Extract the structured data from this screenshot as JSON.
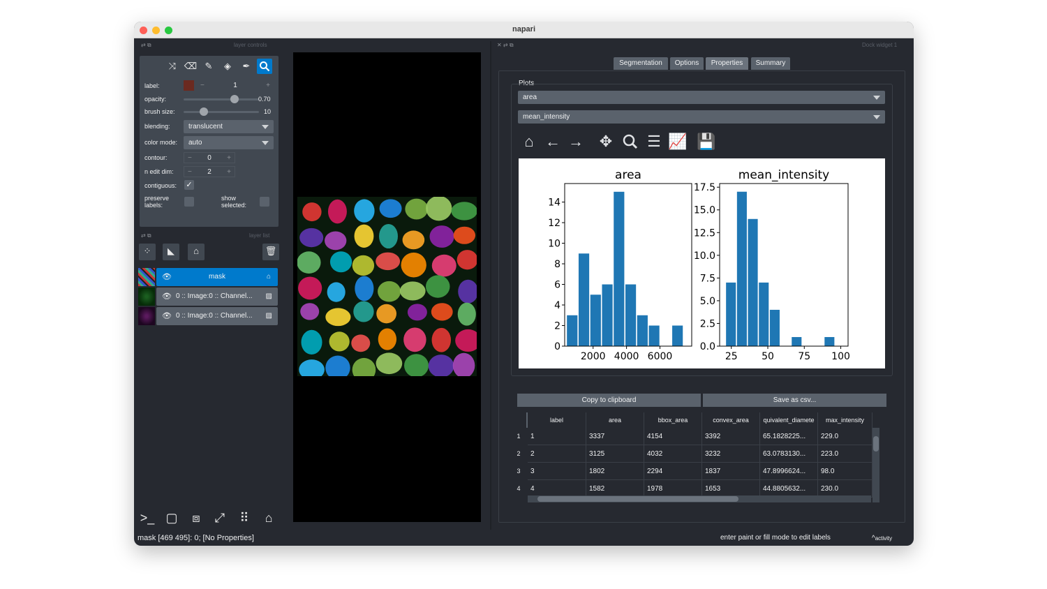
{
  "window": {
    "title": "napari"
  },
  "left_dock": {
    "layer_controls_title": "layer controls",
    "controls": {
      "label_label": "label:",
      "label_value": "1",
      "label_color": "#6b2a20",
      "opacity_label": "opacity:",
      "opacity_value": "0.70",
      "opacity_fraction": 0.7,
      "brush_size_label": "brush size:",
      "brush_size_value": "10",
      "blending_label": "blending:",
      "blending_value": "translucent",
      "color_mode_label": "color mode:",
      "color_mode_value": "auto",
      "contour_label": "contour:",
      "contour_value": "0",
      "n_edit_dim_label": "n edit dim:",
      "n_edit_dim_value": "2",
      "contiguous_label": "contiguous:",
      "preserve_labels_label_1": "preserve",
      "preserve_labels_label_2": "labels:",
      "show_selected_label_1": "show",
      "show_selected_label_2": "selected:"
    },
    "layer_list_title": "layer list",
    "layers": [
      {
        "name": "mask",
        "selected": true
      },
      {
        "name": "0 :: Image:0 :: Channel...",
        "selected": false
      },
      {
        "name": "0 :: Image:0 :: Channel...",
        "selected": false
      }
    ]
  },
  "right_dock": {
    "title": "Dock widget 1",
    "tabs": [
      "Segmentation",
      "Options",
      "Properties",
      "Summary"
    ],
    "active_tab": "Properties",
    "plots_group_title": "Plots",
    "plot_select_1": "area",
    "plot_select_2": "mean_intensity",
    "copy_button": "Copy to clipboard",
    "save_button": "Save as csv...",
    "table": {
      "columns": [
        "label",
        "area",
        "bbox_area",
        "convex_area",
        "quivalent_diamete",
        "max_intensity"
      ],
      "row_numbers": [
        "1",
        "2",
        "3",
        "4"
      ],
      "rows": [
        [
          "1",
          "3337",
          "4154",
          "3392",
          "65.1828225...",
          "229.0"
        ],
        [
          "2",
          "3125",
          "4032",
          "3232",
          "63.0783130...",
          "223.0"
        ],
        [
          "3",
          "1802",
          "2294",
          "1837",
          "47.8996624...",
          "98.0"
        ],
        [
          "4",
          "1582",
          "1978",
          "1653",
          "44.8805632...",
          "230.0"
        ]
      ]
    }
  },
  "chart_data": [
    {
      "type": "bar",
      "title": "area",
      "xlabel": "",
      "ylabel": "",
      "x_ticks": [
        "2000",
        "4000",
        "6000"
      ],
      "y_ticks": [
        "0",
        "2",
        "4",
        "6",
        "8",
        "10",
        "12",
        "14"
      ],
      "xlim": [
        300,
        7900
      ],
      "ylim": [
        0,
        15.8
      ],
      "bins": [
        {
          "x0": 400,
          "x1": 1100,
          "count": 3
        },
        {
          "x0": 1100,
          "x1": 1800,
          "count": 9
        },
        {
          "x0": 1800,
          "x1": 2500,
          "count": 5
        },
        {
          "x0": 2500,
          "x1": 3200,
          "count": 6
        },
        {
          "x0": 3200,
          "x1": 3900,
          "count": 15
        },
        {
          "x0": 3900,
          "x1": 4600,
          "count": 6
        },
        {
          "x0": 4600,
          "x1": 5300,
          "count": 3
        },
        {
          "x0": 5300,
          "x1": 6000,
          "count": 2
        },
        {
          "x0": 6000,
          "x1": 6700,
          "count": 0
        },
        {
          "x0": 6700,
          "x1": 7400,
          "count": 2
        }
      ]
    },
    {
      "type": "bar",
      "title": "mean_intensity",
      "xlabel": "",
      "ylabel": "",
      "x_ticks": [
        "25",
        "50",
        "75",
        "100"
      ],
      "y_ticks": [
        "0.0",
        "2.5",
        "5.0",
        "7.5",
        "10.0",
        "12.5",
        "15.0",
        "17.5"
      ],
      "xlim": [
        17,
        105
      ],
      "ylim": [
        0,
        17.9
      ],
      "bins": [
        {
          "x0": 21,
          "x1": 28.5,
          "count": 7
        },
        {
          "x0": 28.5,
          "x1": 36,
          "count": 17
        },
        {
          "x0": 36,
          "x1": 43.5,
          "count": 14
        },
        {
          "x0": 43.5,
          "x1": 51,
          "count": 7
        },
        {
          "x0": 51,
          "x1": 58.5,
          "count": 4
        },
        {
          "x0": 58.5,
          "x1": 66,
          "count": 0
        },
        {
          "x0": 66,
          "x1": 73.5,
          "count": 1
        },
        {
          "x0": 73.5,
          "x1": 81,
          "count": 0
        },
        {
          "x0": 81,
          "x1": 88.5,
          "count": 0
        },
        {
          "x0": 88.5,
          "x1": 96,
          "count": 1
        }
      ],
      "bar_color": "#1f77b4"
    }
  ],
  "status": {
    "left": "mask [469 495]: 0; [No Properties]",
    "right": "enter paint or fill mode to edit labels",
    "activity": "activity"
  },
  "colors": {
    "accent": "#007acc",
    "background": "#262930",
    "foreground": "#414851"
  }
}
